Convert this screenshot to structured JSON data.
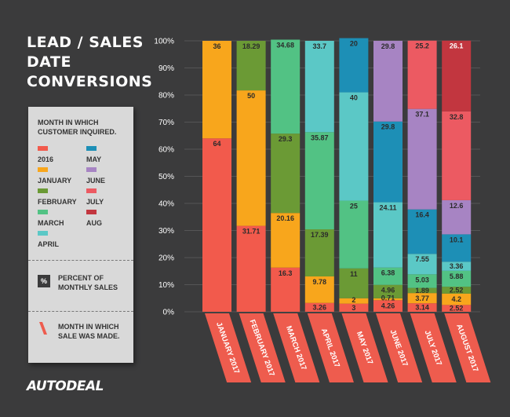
{
  "title_lines": [
    "LEAD / SALES",
    "DATE",
    "CONVERSIONS"
  ],
  "legend": {
    "heading": "MONTH IN WHICH CUSTOMER INQUIRED.",
    "items": [
      {
        "label": "2016",
        "color": "#f25a4c"
      },
      {
        "label": "MAY",
        "color": "#1d8fb6"
      },
      {
        "label": "JANUARY",
        "color": "#f8a61c"
      },
      {
        "label": "JUNE",
        "color": "#a784c3"
      },
      {
        "label": "FEBRUARY",
        "color": "#6b9a35"
      },
      {
        "label": "JULY",
        "color": "#ec5a62"
      },
      {
        "label": "MARCH",
        "color": "#52c284"
      },
      {
        "label": "AUG",
        "color": "#c2363f"
      },
      {
        "label": "APRIL",
        "color": "#5bc8c6"
      }
    ],
    "percent_badge": "%",
    "percent_text": "PERCENT OF MONTHLY SALES",
    "sale_month_text": "MONTH IN WHICH SALE WAS MADE."
  },
  "logo": "AUTODEAL",
  "chart_data": {
    "type": "bar",
    "stacked": true,
    "ylim": [
      0,
      100
    ],
    "yticks": [
      "0%",
      "10%",
      "20%",
      "30%",
      "40%",
      "50%",
      "60%",
      "70%",
      "80%",
      "90%",
      "100%"
    ],
    "categories": [
      "JANUARY 2017",
      "FEBRUARY 2017",
      "MARCH 2017",
      "APRIL 2017",
      "MAY 2017",
      "JUNE 2017",
      "JULY 2017",
      "AUGUST 2017"
    ],
    "series": [
      {
        "name": "2016",
        "color": "#f25a4c",
        "values": [
          64,
          31.71,
          16.3,
          3.26,
          3,
          4.26,
          3.14,
          2.52
        ]
      },
      {
        "name": "JANUARY",
        "color": "#f8a61c",
        "values": [
          36,
          50,
          20.16,
          9.78,
          2,
          0.71,
          3.77,
          4.2
        ]
      },
      {
        "name": "FEBRUARY",
        "color": "#6b9a35",
        "values": [
          null,
          18.29,
          29.3,
          17.39,
          11,
          4.96,
          1.89,
          2.52
        ]
      },
      {
        "name": "MARCH",
        "color": "#52c284",
        "values": [
          null,
          null,
          34.68,
          35.87,
          25,
          6.38,
          5.03,
          5.88
        ]
      },
      {
        "name": "APRIL",
        "color": "#5bc8c6",
        "values": [
          null,
          null,
          null,
          33.7,
          40,
          24.11,
          7.55,
          3.36
        ]
      },
      {
        "name": "MAY",
        "color": "#1d8fb6",
        "values": [
          null,
          null,
          null,
          null,
          20.0,
          29.8,
          16.4,
          10.1
        ]
      },
      {
        "name": "JUNE",
        "color": "#a784c3",
        "values": [
          null,
          null,
          null,
          null,
          null,
          29.8,
          37.1,
          12.6
        ]
      },
      {
        "name": "JULY",
        "color": "#ec5a62",
        "values": [
          null,
          null,
          null,
          null,
          null,
          null,
          25.2,
          32.8
        ]
      },
      {
        "name": "AUG",
        "color": "#c2363f",
        "values": [
          null,
          null,
          null,
          null,
          null,
          null,
          null,
          26.1
        ]
      }
    ],
    "grid": true
  }
}
